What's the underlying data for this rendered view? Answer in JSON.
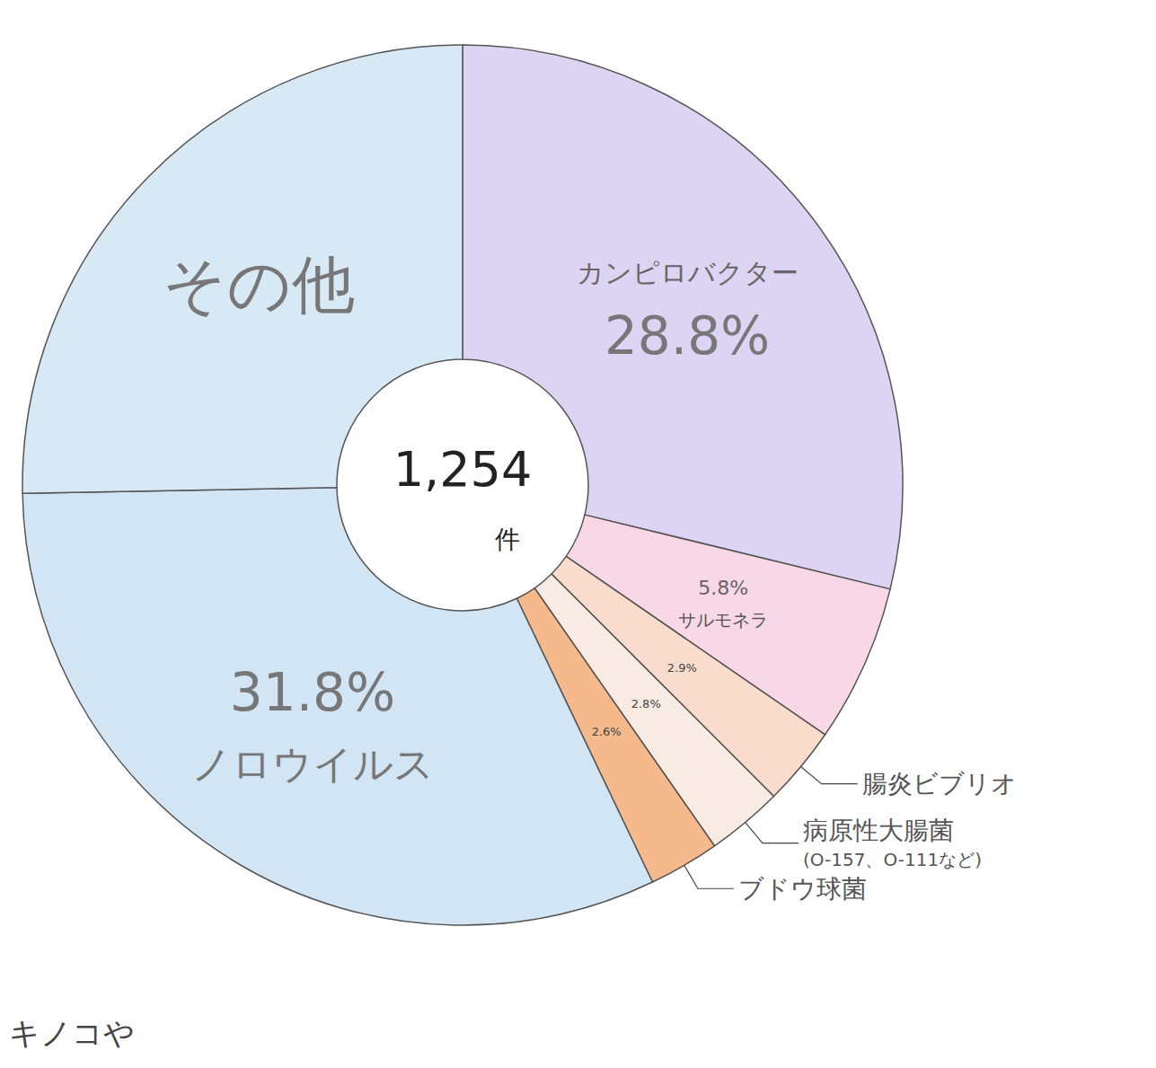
{
  "chart_data": {
    "type": "donut",
    "categories": [
      "カンピロバクター",
      "サルモネラ",
      "腸炎ビブリオ",
      "病原性大腸菌",
      "ブドウ球菌",
      "ノロウイルス",
      "その他"
    ],
    "category_notes": [
      null,
      null,
      null,
      "(O-157、O-111など)",
      null,
      null,
      null
    ],
    "values": [
      28.8,
      5.8,
      2.9,
      2.8,
      2.6,
      31.8,
      25.3
    ],
    "value_labels": [
      "28.8%",
      "5.8%",
      "2.9%",
      "2.8%",
      "2.6%",
      "31.8%",
      null
    ],
    "colors": [
      "#ddd3f2",
      "#f8d7e6",
      "#f9dccb",
      "#f8ebe3",
      "#f5b98c",
      "#d2e5f4",
      "#d8e9f6"
    ],
    "data_labels": true,
    "center_label": "1,254",
    "center_unit": "件",
    "annotations": [
      "キノコや"
    ]
  }
}
